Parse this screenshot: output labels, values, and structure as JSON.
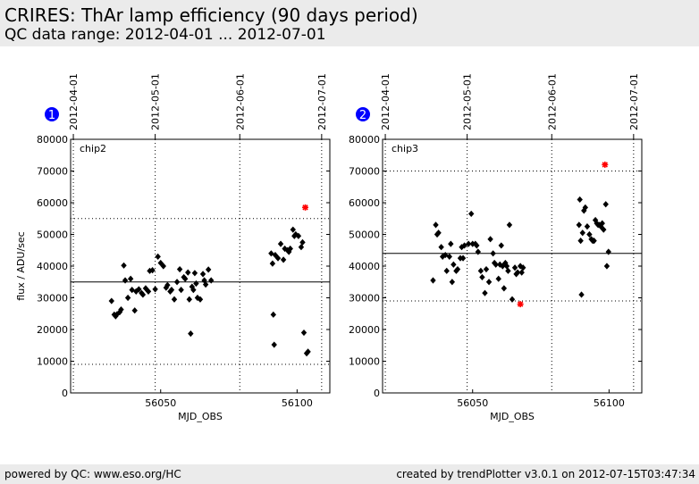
{
  "header": {
    "title": "CRIRES: ThAr lamp efficiency (90 days period)",
    "subtitle": "QC data range: 2012-04-01 ... 2012-07-01"
  },
  "footer": {
    "left": "powered by QC: www.eso.org/HC",
    "right": "created by trendPlotter v3.0.1 on 2012-07-15T03:47:34"
  },
  "colors": {
    "point": "#000000",
    "outlier": "#ff0000",
    "badge": "#0000ff",
    "header_bg": "#ebebeb"
  },
  "chart_data": [
    {
      "type": "scatter",
      "badge": "1",
      "panel_label": "chip2",
      "xlabel": "MJD_OBS",
      "ylabel": "flux / ADU/sec",
      "xlim": [
        56017,
        56112
      ],
      "ylim": [
        0,
        80000
      ],
      "xticks": [
        56050,
        56100
      ],
      "yticks": [
        0,
        10000,
        20000,
        30000,
        40000,
        50000,
        60000,
        70000,
        80000
      ],
      "date_ticks": [
        {
          "label": "2012-04-01",
          "mjd": 56018
        },
        {
          "label": "2012-05-01",
          "mjd": 56048
        },
        {
          "label": "2012-06-01",
          "mjd": 56079
        },
        {
          "label": "2012-07-01",
          "mjd": 56109
        }
      ],
      "mean": 35000,
      "limits": [
        55000,
        9000
      ],
      "points": [
        [
          56032.0,
          29000
        ],
        [
          56033.0,
          24700
        ],
        [
          56033.5,
          24200
        ],
        [
          56034.0,
          24800
        ],
        [
          56035.0,
          25500
        ],
        [
          56035.5,
          26300
        ],
        [
          56036.5,
          40200
        ],
        [
          56037.0,
          35500
        ],
        [
          56038.0,
          30000
        ],
        [
          56039.0,
          36000
        ],
        [
          56039.5,
          32500
        ],
        [
          56040.5,
          26000
        ],
        [
          56041.0,
          32000
        ],
        [
          56042.0,
          32700
        ],
        [
          56043.0,
          31500
        ],
        [
          56043.5,
          31000
        ],
        [
          56044.5,
          33000
        ],
        [
          56045.5,
          32000
        ],
        [
          56046.0,
          38500
        ],
        [
          56047.0,
          38700
        ],
        [
          56048.0,
          32700
        ],
        [
          56049.0,
          43000
        ],
        [
          56050.0,
          41000
        ],
        [
          56051.0,
          40000
        ],
        [
          56052.0,
          33200
        ],
        [
          56052.5,
          34000
        ],
        [
          56053.5,
          32000
        ],
        [
          56054.0,
          32500
        ],
        [
          56055.0,
          29500
        ],
        [
          56056.0,
          35000
        ],
        [
          56057.0,
          39000
        ],
        [
          56057.5,
          32500
        ],
        [
          56058.5,
          36500
        ],
        [
          56059.0,
          36000
        ],
        [
          56060.0,
          38000
        ],
        [
          56060.5,
          29500
        ],
        [
          56061.0,
          18700
        ],
        [
          56061.5,
          33500
        ],
        [
          56062.0,
          32500
        ],
        [
          56062.5,
          37800
        ],
        [
          56063.0,
          34500
        ],
        [
          56063.5,
          30000
        ],
        [
          56064.5,
          29500
        ],
        [
          56065.5,
          37500
        ],
        [
          56066.0,
          35500
        ],
        [
          56066.5,
          34200
        ],
        [
          56067.5,
          38900
        ],
        [
          56068.5,
          35500
        ],
        [
          56090.5,
          44000
        ],
        [
          56091.0,
          40800
        ],
        [
          56091.3,
          24700
        ],
        [
          56091.6,
          15200
        ],
        [
          56092.0,
          43500
        ],
        [
          56093.0,
          42500
        ],
        [
          56094.0,
          47000
        ],
        [
          56095.0,
          42000
        ],
        [
          56095.5,
          45500
        ],
        [
          56096.5,
          45000
        ],
        [
          56097.0,
          44500
        ],
        [
          56097.5,
          45500
        ],
        [
          56098.5,
          51500
        ],
        [
          56099.0,
          49500
        ],
        [
          56099.5,
          50000
        ],
        [
          56100.5,
          49500
        ],
        [
          56101.5,
          46000
        ],
        [
          56102.0,
          47500
        ],
        [
          56102.5,
          19000
        ],
        [
          56103.5,
          12500
        ],
        [
          56104.0,
          13000
        ]
      ],
      "outliers": [
        [
          56103.0,
          58500
        ]
      ]
    },
    {
      "type": "scatter",
      "badge": "2",
      "panel_label": "chip3",
      "xlabel": "MJD_OBS",
      "ylabel": "",
      "xlim": [
        56017,
        56112
      ],
      "ylim": [
        0,
        80000
      ],
      "xticks": [
        56050,
        56100
      ],
      "yticks": [
        0,
        10000,
        20000,
        30000,
        40000,
        50000,
        60000,
        70000,
        80000
      ],
      "date_ticks": [
        {
          "label": "2012-04-01",
          "mjd": 56018
        },
        {
          "label": "2012-05-01",
          "mjd": 56048
        },
        {
          "label": "2012-06-01",
          "mjd": 56079
        },
        {
          "label": "2012-07-01",
          "mjd": 56109
        }
      ],
      "mean": 44000,
      "limits": [
        70000,
        29000
      ],
      "points": [
        [
          56035.5,
          35500
        ],
        [
          56036.5,
          53000
        ],
        [
          56037.0,
          50000
        ],
        [
          56037.5,
          50500
        ],
        [
          56038.5,
          46000
        ],
        [
          56039.0,
          43000
        ],
        [
          56040.0,
          43500
        ],
        [
          56040.5,
          38500
        ],
        [
          56041.5,
          43000
        ],
        [
          56042.0,
          47000
        ],
        [
          56042.5,
          35000
        ],
        [
          56043.0,
          40500
        ],
        [
          56044.0,
          38500
        ],
        [
          56044.5,
          39000
        ],
        [
          56045.5,
          42500
        ],
        [
          56046.0,
          46000
        ],
        [
          56046.5,
          42500
        ],
        [
          56047.0,
          46500
        ],
        [
          56048.5,
          47000
        ],
        [
          56049.5,
          56500
        ],
        [
          56050.0,
          47000
        ],
        [
          56051.0,
          47000
        ],
        [
          56051.5,
          46500
        ],
        [
          56052.0,
          44500
        ],
        [
          56053.0,
          38500
        ],
        [
          56053.5,
          36500
        ],
        [
          56054.5,
          31500
        ],
        [
          56055.0,
          39000
        ],
        [
          56056.0,
          35000
        ],
        [
          56056.5,
          48500
        ],
        [
          56057.5,
          44000
        ],
        [
          56058.0,
          41000
        ],
        [
          56058.5,
          40500
        ],
        [
          56059.5,
          36000
        ],
        [
          56060.0,
          40500
        ],
        [
          56060.5,
          46500
        ],
        [
          56061.0,
          40000
        ],
        [
          56061.5,
          33000
        ],
        [
          56062.0,
          41000
        ],
        [
          56062.5,
          40000
        ],
        [
          56063.0,
          38500
        ],
        [
          56063.5,
          53000
        ],
        [
          56064.5,
          29500
        ],
        [
          56065.5,
          39500
        ],
        [
          56066.0,
          37500
        ],
        [
          56066.5,
          38000
        ],
        [
          56067.5,
          40000
        ],
        [
          56068.0,
          38000
        ],
        [
          56068.5,
          39500
        ],
        [
          56089.0,
          53000
        ],
        [
          56089.3,
          61000
        ],
        [
          56089.6,
          48000
        ],
        [
          56089.9,
          31000
        ],
        [
          56090.3,
          50500
        ],
        [
          56090.8,
          57500
        ],
        [
          56091.3,
          58500
        ],
        [
          56092.0,
          52500
        ],
        [
          56092.8,
          50000
        ],
        [
          56093.5,
          48500
        ],
        [
          56094.0,
          48000
        ],
        [
          56094.5,
          48000
        ],
        [
          56095.0,
          54500
        ],
        [
          56095.5,
          53500
        ],
        [
          56096.0,
          53000
        ],
        [
          56096.5,
          53000
        ],
        [
          56097.0,
          52500
        ],
        [
          56097.5,
          53500
        ],
        [
          56098.0,
          51500
        ],
        [
          56098.8,
          59500
        ],
        [
          56099.2,
          40000
        ],
        [
          56099.8,
          44500
        ]
      ],
      "outliers": [
        [
          56067.5,
          28000
        ],
        [
          56098.5,
          72000
        ]
      ]
    }
  ]
}
